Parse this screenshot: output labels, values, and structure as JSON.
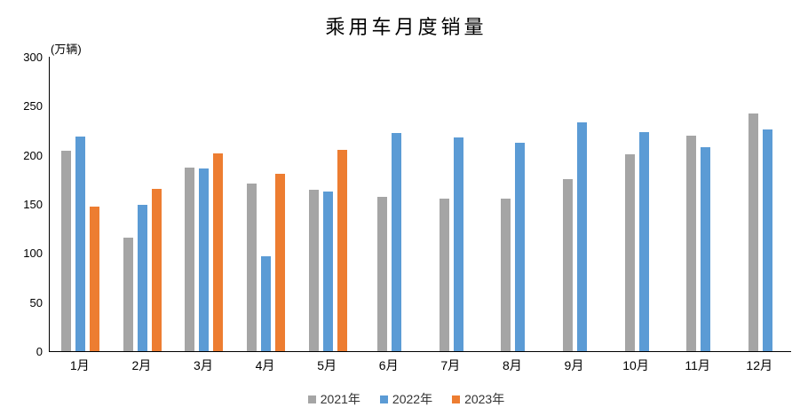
{
  "chart_data": {
    "type": "bar",
    "title": "乘用车月度销量",
    "unit_label": "(万辆)",
    "xlabel": "",
    "ylabel": "万辆",
    "ylim": [
      0,
      300
    ],
    "yticks": [
      0,
      50,
      100,
      150,
      200,
      250,
      300
    ],
    "grid": false,
    "legend_position": "bottom",
    "categories": [
      "1月",
      "2月",
      "3月",
      "4月",
      "5月",
      "6月",
      "7月",
      "8月",
      "9月",
      "10月",
      "11月",
      "12月"
    ],
    "series": [
      {
        "name": "2021年",
        "color": "#A5A5A5",
        "values": [
          204.5,
          115.6,
          187.4,
          170.4,
          164.6,
          156.9,
          155.1,
          155.2,
          175.1,
          200.7,
          219.2,
          242.2
        ]
      },
      {
        "name": "2022年",
        "color": "#5B9BD5",
        "values": [
          218.6,
          148.7,
          186.4,
          96.5,
          162.3,
          222.2,
          217.4,
          212.5,
          233.2,
          223.1,
          207.5,
          226.3
        ]
      },
      {
        "name": "2023年",
        "color": "#ED7D31",
        "values": [
          146.9,
          165.3,
          201.7,
          181.1,
          205.1,
          null,
          null,
          null,
          null,
          null,
          null,
          null
        ]
      }
    ],
    "axis_color": "#000000"
  }
}
